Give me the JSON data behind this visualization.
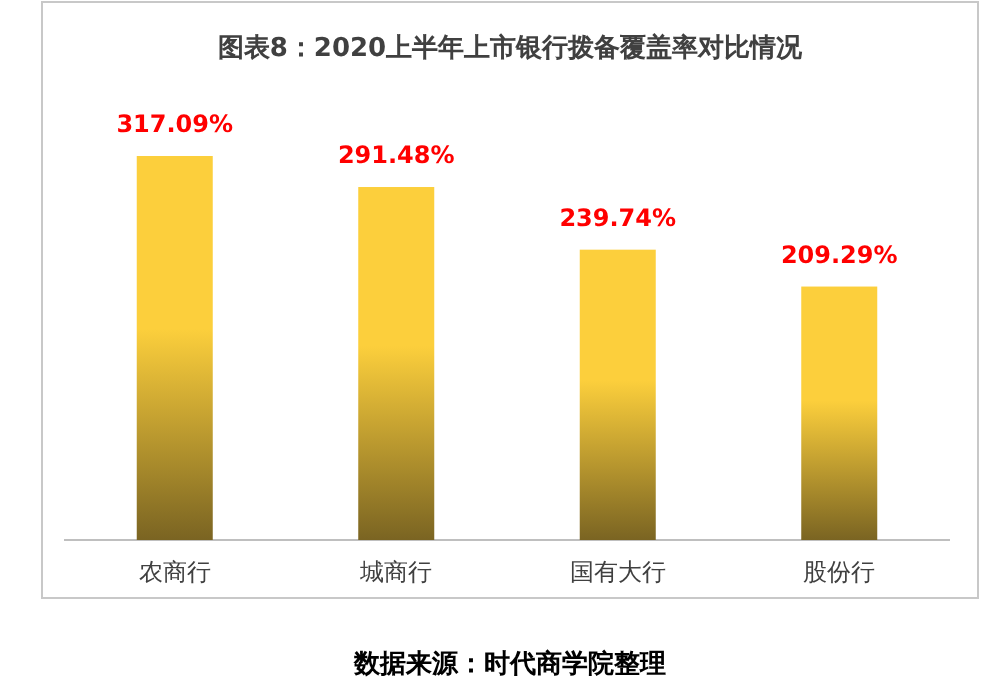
{
  "chart_data": {
    "type": "bar",
    "title": "图表8：2020上半年上市银行拨备覆盖率对比情况",
    "categories": [
      "农商行",
      "城商行",
      "国有大行",
      "股份行"
    ],
    "values": [
      317.09,
      291.48,
      239.74,
      209.29
    ],
    "value_labels": [
      "317.09%",
      "291.48%",
      "239.74%",
      "209.29%"
    ],
    "color": "#fccf3c",
    "annotations": [
      "数据来源：时代商学院整理"
    ]
  }
}
